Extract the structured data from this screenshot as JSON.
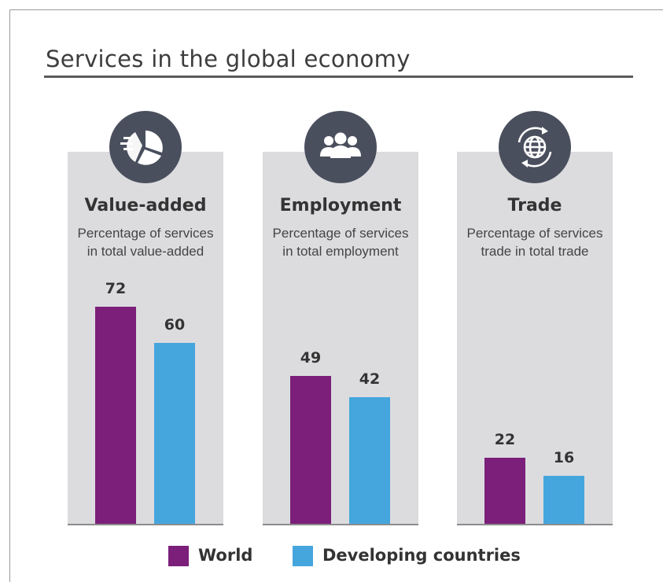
{
  "title": "Services in the global economy",
  "colors": {
    "world": "#7b1f7a",
    "developing": "#45a6dd",
    "panel": "#dcdcdf",
    "icon_bg": "#4a4f5e"
  },
  "panels": [
    {
      "title": "Value-added",
      "subtitle_line1": "Percentage of services",
      "subtitle_line2": "in total value-added",
      "icon": "pie-chart-icon"
    },
    {
      "title": "Employment",
      "subtitle_line1": "Percentage of services",
      "subtitle_line2": "in total employment",
      "icon": "people-icon"
    },
    {
      "title": "Trade",
      "subtitle_line1": "Percentage of services",
      "subtitle_line2": "trade in total trade",
      "icon": "globe-cycle-icon"
    }
  ],
  "legend": {
    "world": "World",
    "developing": "Developing countries"
  },
  "chart_data": {
    "type": "bar",
    "title": "Services in the global economy",
    "categories": [
      "Value-added",
      "Employment",
      "Trade"
    ],
    "series": [
      {
        "name": "World",
        "values": [
          72,
          49,
          22
        ]
      },
      {
        "name": "Developing countries",
        "values": [
          60,
          42,
          16
        ]
      }
    ],
    "ylim": [
      0,
      100
    ],
    "grid": false,
    "legend_position": "bottom"
  }
}
